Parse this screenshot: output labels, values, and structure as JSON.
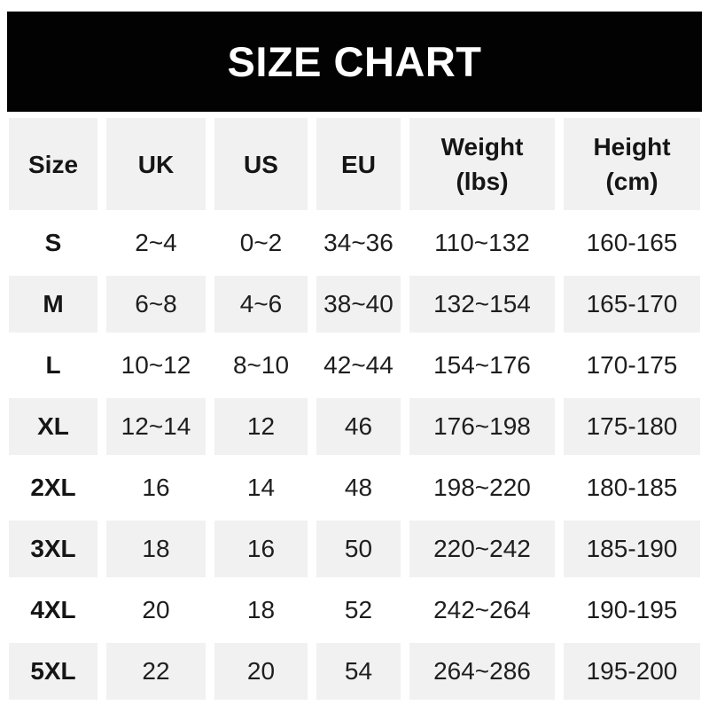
{
  "banner": {
    "title": "SIZE CHART"
  },
  "table": {
    "columns": [
      {
        "key": "size",
        "label": "Size"
      },
      {
        "key": "uk",
        "label": "UK"
      },
      {
        "key": "us",
        "label": "US"
      },
      {
        "key": "eu",
        "label": "EU"
      },
      {
        "key": "weight",
        "label": "Weight\n(lbs)"
      },
      {
        "key": "height",
        "label": "Height\n(cm)"
      }
    ],
    "rows": [
      {
        "size": "S",
        "uk": "2~4",
        "us": "0~2",
        "eu": "34~36",
        "weight": "110~132",
        "height": "160-165"
      },
      {
        "size": "M",
        "uk": "6~8",
        "us": "4~6",
        "eu": "38~40",
        "weight": "132~154",
        "height": "165-170"
      },
      {
        "size": "L",
        "uk": "10~12",
        "us": "8~10",
        "eu": "42~44",
        "weight": "154~176",
        "height": "170-175"
      },
      {
        "size": "XL",
        "uk": "12~14",
        "us": "12",
        "eu": "46",
        "weight": "176~198",
        "height": "175-180"
      },
      {
        "size": "2XL",
        "uk": "16",
        "us": "14",
        "eu": "48",
        "weight": "198~220",
        "height": "180-185"
      },
      {
        "size": "3XL",
        "uk": "18",
        "us": "16",
        "eu": "50",
        "weight": "220~242",
        "height": "185-190"
      },
      {
        "size": "4XL",
        "uk": "20",
        "us": "18",
        "eu": "52",
        "weight": "242~264",
        "height": "190-195"
      },
      {
        "size": "5XL",
        "uk": "22",
        "us": "20",
        "eu": "54",
        "weight": "264~286",
        "height": "195-200"
      }
    ]
  },
  "colors": {
    "banner_bg": "#020202",
    "banner_text": "#ffffff",
    "stripe_bg": "#f1f1f1",
    "text": "#1e1e1e",
    "page_bg": "#ffffff"
  },
  "chart_data": {
    "type": "table",
    "title": "SIZE CHART",
    "columns": [
      "Size",
      "UK",
      "US",
      "EU",
      "Weight (lbs)",
      "Height (cm)"
    ],
    "rows": [
      [
        "S",
        "2~4",
        "0~2",
        "34~36",
        "110~132",
        "160-165"
      ],
      [
        "M",
        "6~8",
        "4~6",
        "38~40",
        "132~154",
        "165-170"
      ],
      [
        "L",
        "10~12",
        "8~10",
        "42~44",
        "154~176",
        "170-175"
      ],
      [
        "XL",
        "12~14",
        "12",
        "46",
        "176~198",
        "175-180"
      ],
      [
        "2XL",
        "16",
        "14",
        "48",
        "198~220",
        "180-185"
      ],
      [
        "3XL",
        "18",
        "16",
        "50",
        "220~242",
        "185-190"
      ],
      [
        "4XL",
        "20",
        "18",
        "52",
        "242~264",
        "190-195"
      ],
      [
        "5XL",
        "22",
        "20",
        "54",
        "264~286",
        "195-200"
      ]
    ]
  }
}
